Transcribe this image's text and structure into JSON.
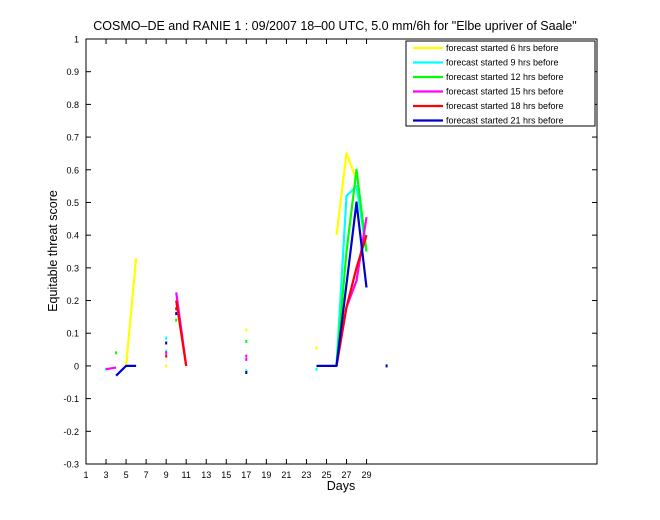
{
  "chart_data": {
    "type": "line",
    "title": "COSMO–DE and RANIE 1 : 09/2007 18–00 UTC, 5.0 mm/6h for \"Elbe upriver of Saale\"",
    "xlabel": "Days",
    "ylabel": "Equitable threat score",
    "xlim": [
      1,
      52
    ],
    "ylim": [
      -0.3,
      1
    ],
    "xticks": [
      1,
      3,
      5,
      7,
      9,
      11,
      13,
      15,
      17,
      19,
      21,
      23,
      25,
      27,
      29
    ],
    "yticks": [
      -0.3,
      -0.2,
      -0.1,
      0,
      0.1,
      0.2,
      0.3,
      0.4,
      0.5,
      0.6,
      0.7,
      0.8,
      0.9,
      1
    ],
    "legend_position": "top-right",
    "grid": false,
    "series": [
      {
        "name": "forecast started 6 hrs before",
        "color": "#ffff00",
        "segments": [
          [
            [
              5,
              0
            ],
            [
              6,
              0.33
            ]
          ],
          [
            [
              26,
              0.4
            ],
            [
              27,
              0.65
            ],
            [
              28,
              0.57
            ]
          ]
        ],
        "points": [
          [
            9,
            0.0
          ],
          [
            17,
            0.11
          ],
          [
            24,
            0.055
          ]
        ]
      },
      {
        "name": "forecast started 9 hrs before",
        "color": "#00ffff",
        "segments": [
          [
            [
              26,
              0
            ],
            [
              27,
              0.52
            ],
            [
              28,
              0.55
            ],
            [
              29,
              0.35
            ]
          ]
        ],
        "points": [
          [
            3,
            -0.01
          ],
          [
            9,
            0.085
          ],
          [
            9,
            0.045
          ],
          [
            17,
            -0.015
          ],
          [
            24,
            -0.01
          ]
        ]
      },
      {
        "name": "forecast started 12 hrs before",
        "color": "#00ff00",
        "segments": [
          [
            [
              26,
              0
            ],
            [
              27,
              0.35
            ],
            [
              28,
              0.6
            ],
            [
              29,
              0.35
            ]
          ]
        ],
        "points": [
          [
            4,
            0.04
          ],
          [
            10,
            0.14
          ],
          [
            17,
            0.075
          ]
        ]
      },
      {
        "name": "forecast started 15 hrs before",
        "color": "#ff00ff",
        "segments": [
          [
            [
              3,
              -0.01
            ],
            [
              4,
              -0.005
            ]
          ],
          [
            [
              10,
              0.225
            ],
            [
              11,
              0
            ]
          ],
          [
            [
              26,
              0
            ],
            [
              27,
              0.18
            ],
            [
              28,
              0.26
            ],
            [
              29,
              0.455
            ]
          ]
        ],
        "points": [
          [
            9,
            0.04
          ],
          [
            17,
            0.03
          ],
          [
            17,
            0.02
          ]
        ]
      },
      {
        "name": "forecast started 18 hrs before",
        "color": "#ff0000",
        "segments": [
          [
            [
              10,
              0.2
            ],
            [
              11,
              0
            ]
          ],
          [
            [
              26,
              0
            ],
            [
              27,
              0.18
            ],
            [
              28,
              0.3
            ],
            [
              29,
              0.4
            ]
          ]
        ],
        "points": [
          [
            9,
            0.03
          ],
          [
            10,
            0.175
          ]
        ]
      },
      {
        "name": "forecast started 21 hrs before",
        "color": "#0000cc",
        "segments": [
          [
            [
              4,
              -0.03
            ],
            [
              5,
              0
            ],
            [
              6,
              0
            ]
          ],
          [
            [
              24,
              0
            ],
            [
              26,
              0
            ],
            [
              28,
              0.5
            ],
            [
              29,
              0.24
            ]
          ]
        ],
        "points": [
          [
            9,
            0.07
          ],
          [
            10,
            0.16
          ],
          [
            17,
            -0.02
          ],
          [
            31,
            0.0
          ]
        ]
      }
    ]
  }
}
